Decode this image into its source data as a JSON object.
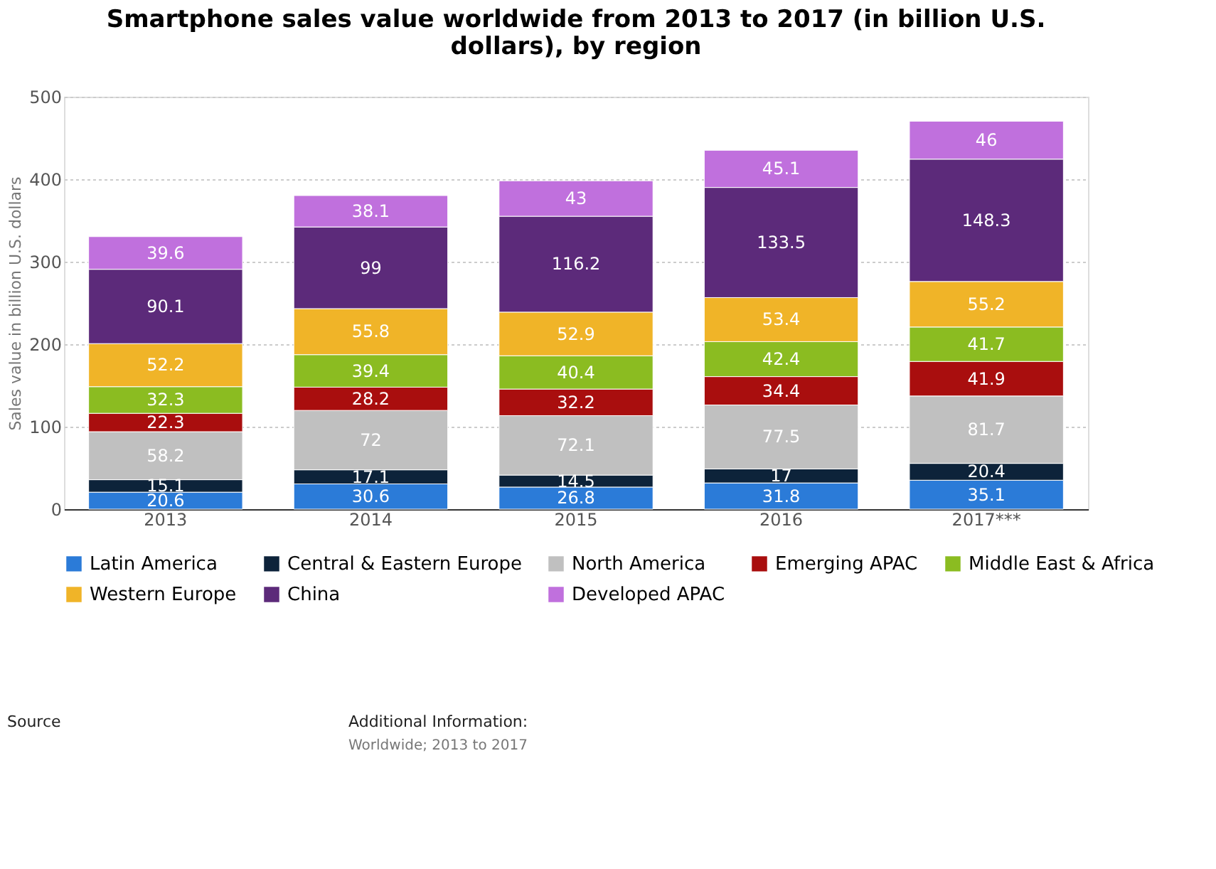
{
  "chart_data": {
    "type": "bar",
    "title": "Smartphone sales value worldwide from 2013 to 2017 (in billion U.S. dollars), by region",
    "ylabel": "Sales value in billion U.S. dollars",
    "categories": [
      "2013",
      "2014",
      "2015",
      "2016",
      "2017***"
    ],
    "stacked": true,
    "data_labels": true,
    "grid": "y",
    "legend": "bottom",
    "ylim": [
      0,
      500
    ],
    "yticks": [
      0,
      100,
      200,
      300,
      400,
      500
    ],
    "series": [
      {
        "name": "Latin America",
        "color": "#2b7bd8",
        "values": [
          20.6,
          30.6,
          26.8,
          31.8,
          35.1
        ]
      },
      {
        "name": "Central & Eastern Europe",
        "color": "#0d233a",
        "values": [
          15.1,
          17.1,
          14.5,
          17,
          20.4
        ]
      },
      {
        "name": "North America",
        "color": "#c0c0c0",
        "values": [
          58.2,
          72,
          72.1,
          77.5,
          81.7
        ]
      },
      {
        "name": "Emerging APAC",
        "color": "#a90e0e",
        "values": [
          22.3,
          28.2,
          32.2,
          34.4,
          41.9
        ]
      },
      {
        "name": "Middle East & Africa",
        "color": "#8bbc21",
        "values": [
          32.3,
          39.4,
          40.4,
          42.4,
          41.7
        ]
      },
      {
        "name": "Western Europe",
        "color": "#f0b428",
        "values": [
          52.2,
          55.8,
          52.9,
          53.4,
          55.2
        ]
      },
      {
        "name": "China",
        "color": "#5c2a7a",
        "values": [
          90.1,
          99,
          116.2,
          133.5,
          148.3
        ]
      },
      {
        "name": "Developed APAC",
        "color": "#c070dd",
        "values": [
          39.6,
          38.1,
          43,
          45.1,
          46
        ]
      }
    ],
    "annotations": [
      "Source",
      "Additional Information:",
      "Worldwide; 2013 to 2017"
    ]
  }
}
